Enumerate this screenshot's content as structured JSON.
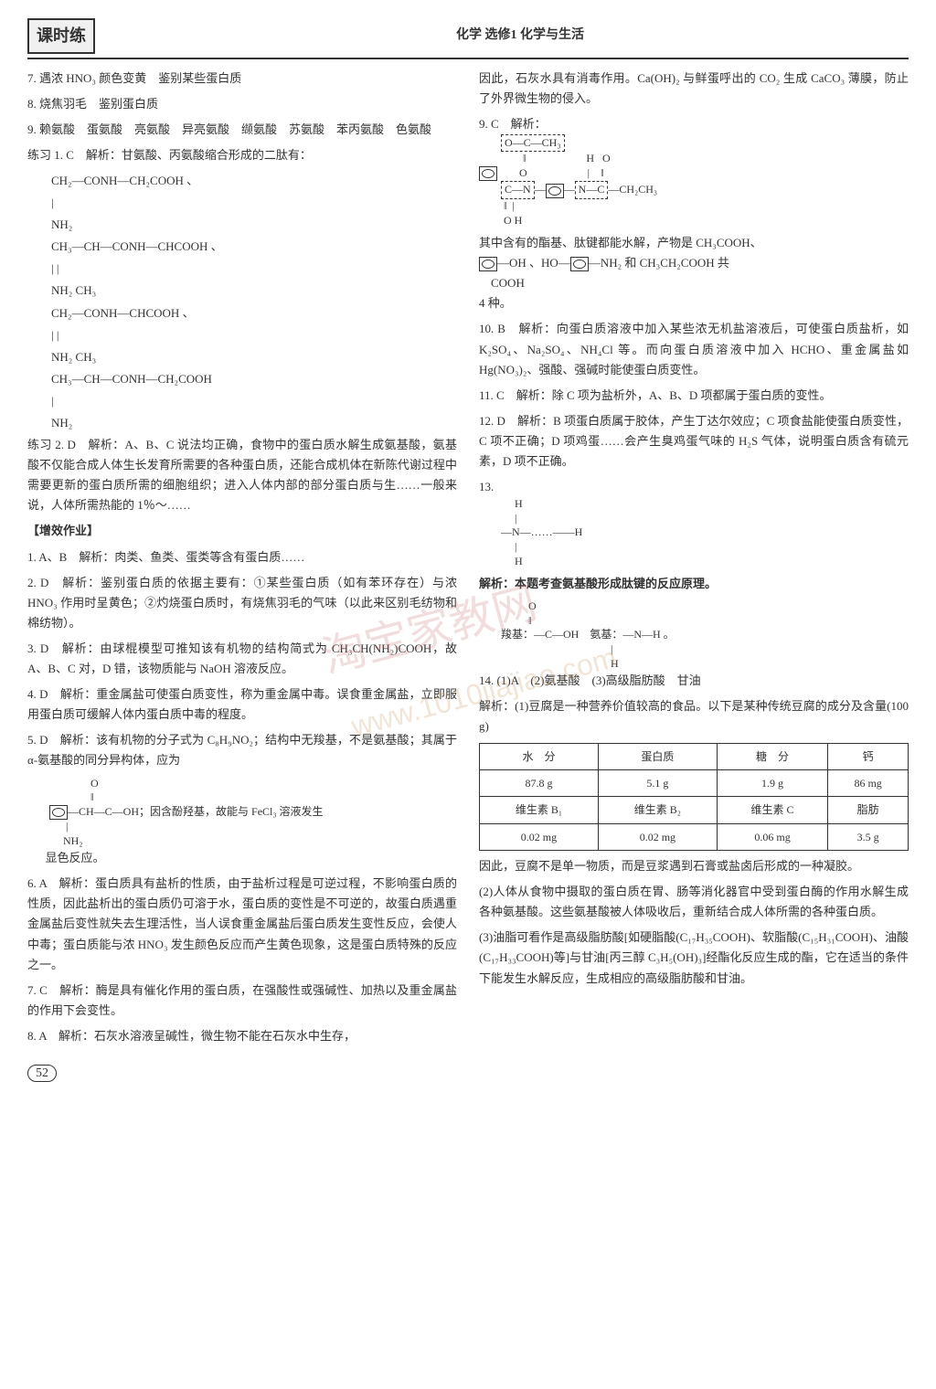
{
  "header": {
    "logo": "课时练",
    "subject": "化学 选修1 化学与生活"
  },
  "left": {
    "q7": "7. 遇浓 HNO₃ 颜色变黄　鉴别某些蛋白质",
    "q8": "8. 烧焦羽毛　鉴别蛋白质",
    "q9": "9. 赖氨酸　蛋氨酸　亮氨酸　异亮氨酸　缬氨酸　苏氨酸　苯丙氨酸　色氨酸",
    "p1_head": "练习 1. C　解析：甘氨酸、丙氨酸缩合形成的二肽有：",
    "p1_f1": "CH₂—CONH—CH₂COOH 、",
    "p1_f1b": "|",
    "p1_f1c": "NH₂",
    "p1_f2a": "CH₃—CH—CONH—CHCOOH 、",
    "p1_f2b": "        |                    |",
    "p1_f2c": "       NH₂               CH₃",
    "p1_f3a": "CH₂—CONH—CHCOOH 、",
    "p1_f3b": "|                        |",
    "p1_f3c": "NH₂                   CH₃",
    "p1_f4a": "CH₃—CH—CONH—CH₂COOH",
    "p1_f4b": "        |",
    "p1_f4c": "       NH₂",
    "p2": "练习 2. D　解析：A、B、C 说法均正确，食物中的蛋白质水解生成氨基酸，氨基酸不仅能合成人体生长发育所需要的各种蛋白质，还能合成机体在新陈代谢过程中需要更新的蛋白质所需的细胞组织；进入人体内部的部分蛋白质与生……一般来说，人体所需热能的 1％～……",
    "zx_head": "【增效作业】",
    "a1": "1. A、B　解析：肉类、鱼类、蛋类等含有蛋白质……",
    "a2": "2. D　解析：鉴别蛋白质的依据主要有：①某些蛋白质（如有苯环存在）与浓 HNO₃ 作用时呈黄色；②灼烧蛋白质时，有烧焦羽毛的气味（以此来区别毛纺物和棉纺物）。",
    "a3": "3. D　解析：由球棍模型可推知该有机物的结构简式为 CH₃CH(NH₂)COOH，故 A、B、C 对，D 错，该物质能与 NaOH 溶液反应。",
    "a4": "4. D　解析：重金属盐可使蛋白质变性，称为重金属中毒。误食重金属盐，立即服用蛋白质可缓解人体内蛋白质中毒的程度。",
    "a5a": "5. D　解析：该有机物的分子式为 C₈H₉NO₂；结构中无羧基，不是氨基酸；其属于 α-氨基酸的同分异构体，应为",
    "a5b_label": "；因含酚羟基，故能与 FeCl₃ 溶液发生",
    "a5c": "显色反应。",
    "a6": "6. A　解析：蛋白质具有盐析的性质，由于盐析过程是可逆过程，不影响蛋白质的性质，因此盐析出的蛋白质仍可溶于水，蛋白质的变性是不可逆的，故蛋白质遇重金属盐后变性就失去生理活性，当人误食重金属盐后蛋白质发生变性反应，会使人中毒；蛋白质能与浓 HNO₃ 发生颜色反应而产生黄色现象，这是蛋白质特殊的反应之一。",
    "a7": "7. C　解析：酶是具有催化作用的蛋白质，在强酸性或强碱性、加热以及重金属盐的作用下会变性。",
    "a8": "8. A　解析：石灰水溶液呈碱性，微生物不能在石灰水中生存，"
  },
  "right": {
    "r_cont": "因此，石灰水具有消毒作用。Ca(OH)₂ 与鲜蛋呼出的 CO₂ 生成 CaCO₃ 薄膜，防止了外界微生物的侵入。",
    "r9_head": "9. C　解析：",
    "r9_diag_a": "O—C—CH₃",
    "r9_diag_b": "‖",
    "r9_diag_c": "O",
    "r9_diag_d": "C—N—",
    "r9_diag_e": "H   O",
    "r9_diag_f": "N—C—CH₂CH₃",
    "r9_text": "其中含有的酯基、肽键都能水解，产物是 CH₃COOH、",
    "r9_text2": "—OH 、HO—",
    "r9_text3": "—NH₂ 和 CH₃CH₂COOH 共",
    "r9_text4": "COOH",
    "r9_text5": "4 种。",
    "r10": "10. B　解析：向蛋白质溶液中加入某些浓无机盐溶液后，可使蛋白质盐析，如 K₂SO₄、Na₂SO₄、NH₄Cl 等。而向蛋白质溶液中加入 HCHO、重金属盐如 Hg(NO₃)₂、强酸、强碱时能使蛋白质变性。",
    "r11": "11. C　解析：除 C 项为盐析外，A、B、D 项都属于蛋白质的变性。",
    "r12": "12. D　解析：B 项蛋白质属于胶体，产生丁达尔效应；C 项食盐能使蛋白质变性，C 项不正确；D 项鸡蛋……会产生臭鸡蛋气味的 H₂S 气体，说明蛋白质含有硫元素，D 项不正确。",
    "r13a": "13.",
    "r13b": "H",
    "r13c": "—N—……—H",
    "r13d": "H",
    "r13_text": "解析：本题考查氨基酸形成肽键的反应原理。",
    "r13_f1": "O",
    "r13_f2": "‖",
    "r13_f3": "羧基：—C—OH　氨基：—N—H 。",
    "r13_f4": "                                    |",
    "r13_f5": "                                   H",
    "r14_head": "14. (1)A　(2)氨基酸　(3)高级脂肪酸　甘油",
    "r14_text": "解析：(1)豆腐是一种营养价值较高的食品。以下是某种传统豆腐的成分及含量(100 g)",
    "table": {
      "headers": [
        "水　分",
        "蛋白质",
        "糖　分",
        "钙"
      ],
      "row1": [
        "87.8 g",
        "5.1 g",
        "1.9 g",
        "86 mg"
      ],
      "row2h": [
        "维生素 B₁",
        "维生素 B₂",
        "维生素 C",
        "脂肪"
      ],
      "row2": [
        "0.02 mg",
        "0.02 mg",
        "0.06 mg",
        "3.5 g"
      ]
    },
    "r14_after": "因此，豆腐不是单一物质，而是豆浆遇到石膏或盐卤后形成的一种凝胶。",
    "r14_2": "(2)人体从食物中摄取的蛋白质在胃、肠等消化器官中受到蛋白酶的作用水解生成各种氨基酸。这些氨基酸被人体吸收后，重新结合成人体所需的各种蛋白质。",
    "r14_3": "(3)油脂可看作是高级脂肪酸[如硬脂酸(C₁₇H₃₅COOH)、软脂酸(C₁₅H₃₁COOH)、油酸(C₁₇H₃₃COOH)等]与甘油[丙三醇 C₃H₅(OH)₃]经酯化反应生成的酯，它在适当的条件下能发生水解反应，生成相应的高级脂肪酸和甘油。"
  },
  "page": "52"
}
